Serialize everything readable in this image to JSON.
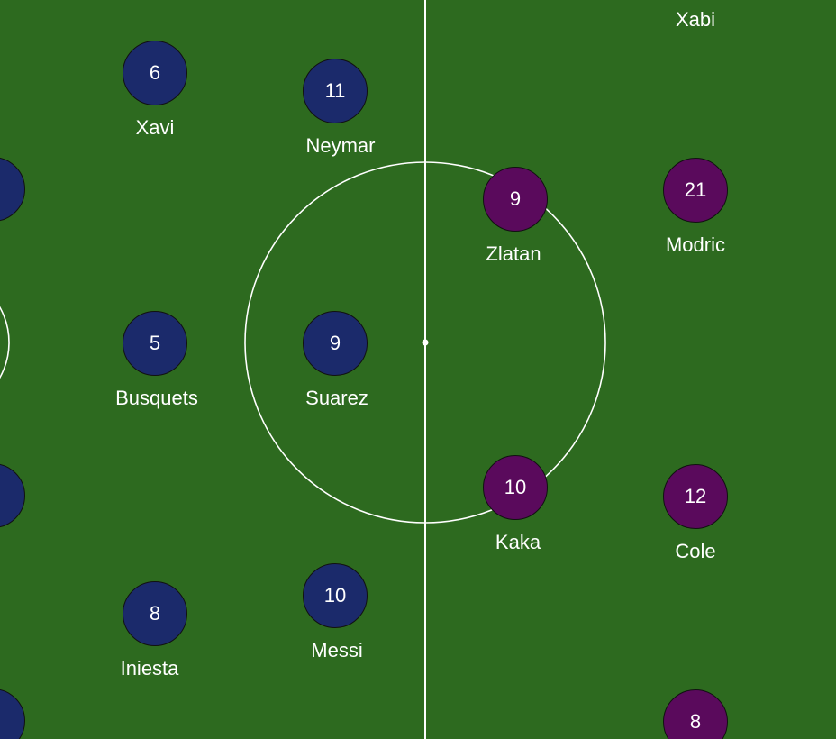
{
  "colors": {
    "pitch": "#2d6a1f",
    "line": "#ffffff",
    "home_team": "#1b2a6b",
    "away_team": "#5a0a5c"
  },
  "home_team": {
    "players": [
      {
        "id": "xavi",
        "number": "6",
        "name": "Xavi"
      },
      {
        "id": "neymar",
        "number": "11",
        "name": "Neymar"
      },
      {
        "id": "busquets",
        "number": "5",
        "name": "Busquets"
      },
      {
        "id": "suarez",
        "number": "9",
        "name": "Suarez"
      },
      {
        "id": "iniesta",
        "number": "8",
        "name": "Iniesta"
      },
      {
        "id": "messi",
        "number": "10",
        "name": "Messi"
      },
      {
        "id": "partial-1",
        "number": "",
        "name": ""
      },
      {
        "id": "partial-2",
        "number": "",
        "name": ""
      },
      {
        "id": "partial-3",
        "number": "",
        "name": ""
      }
    ]
  },
  "away_team": {
    "players": [
      {
        "id": "xabi",
        "number": "",
        "name": "Xabi"
      },
      {
        "id": "zlatan",
        "number": "9",
        "name": "Zlatan"
      },
      {
        "id": "modric",
        "number": "21",
        "name": "Modric"
      },
      {
        "id": "kaka",
        "number": "10",
        "name": "Kaka"
      },
      {
        "id": "cole",
        "number": "12",
        "name": "Cole"
      },
      {
        "id": "bottom",
        "number": "8",
        "name": ""
      }
    ]
  }
}
